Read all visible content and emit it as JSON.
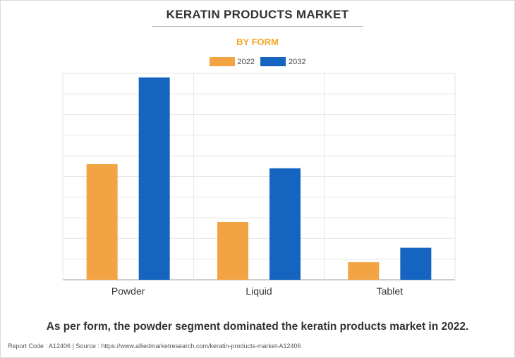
{
  "chart_data": {
    "type": "bar",
    "title": "KERATIN PRODUCTS MARKET",
    "subtitle": "BY FORM",
    "categories": [
      "Powder",
      "Liquid",
      "Tablet"
    ],
    "series": [
      {
        "name": "2022",
        "values": [
          56,
          28,
          8.5
        ],
        "color": "#f2a444"
      },
      {
        "name": "2032",
        "values": [
          98,
          54,
          15.5
        ],
        "color": "#1565c0"
      }
    ],
    "ylim": [
      0,
      100
    ],
    "yticks_shown": false,
    "grid": true,
    "legend_placement": "top-center"
  },
  "footnote": "As per form, the powder segment dominated the keratin products market in 2022.",
  "source": "Report Code : A12406  |  Source : https://www.alliedmarketresearch.com/keratin-products-market-A12406"
}
